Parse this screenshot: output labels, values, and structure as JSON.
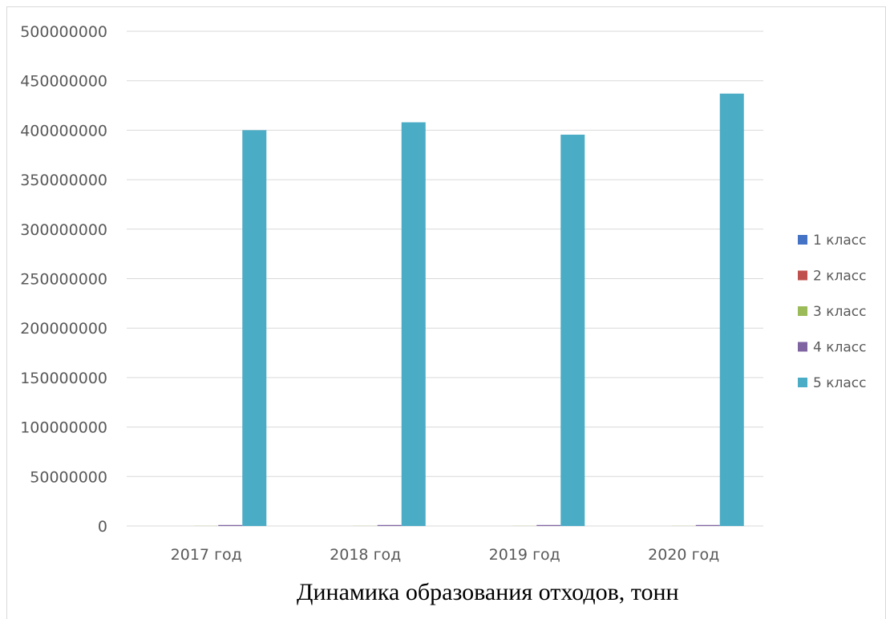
{
  "caption": "Динамика образования отходов, тонн",
  "chart_data": {
    "type": "bar",
    "categories": [
      "2017 год",
      "2018 год",
      "2019 год",
      "2020 год"
    ],
    "ylim": [
      0,
      500000000
    ],
    "yticks": [
      0,
      50000000,
      100000000,
      150000000,
      200000000,
      250000000,
      300000000,
      350000000,
      400000000,
      450000000,
      500000000
    ],
    "grid": true,
    "legend_position": "right",
    "title": "",
    "xlabel": "",
    "ylabel": "",
    "series": [
      {
        "name": "1 класс",
        "color": "#4472c4",
        "values": [
          0,
          0,
          0,
          0
        ]
      },
      {
        "name": "2 класс",
        "color": "#c0504d",
        "values": [
          0,
          0,
          0,
          0
        ]
      },
      {
        "name": "3 класс",
        "color": "#9bbb59",
        "values": [
          100000,
          100000,
          100000,
          100000
        ]
      },
      {
        "name": "4 класс",
        "color": "#8064a2",
        "values": [
          1000000,
          1000000,
          1000000,
          1000000
        ]
      },
      {
        "name": "5 класс",
        "color": "#4bacc6",
        "values": [
          400000000,
          408000000,
          395500000,
          437000000
        ]
      }
    ]
  }
}
